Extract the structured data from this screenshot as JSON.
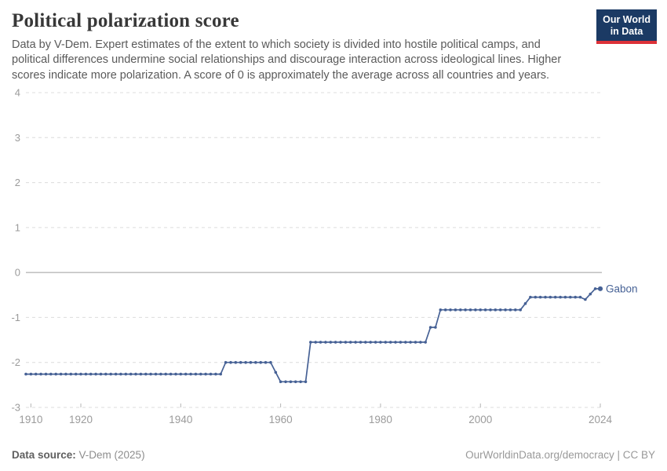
{
  "header": {
    "title": "Political polarization score",
    "subtitle": "Data by V-Dem. Expert estimates of the extent to which society is divided into hostile political camps, and political differences undermine social relationships and discourage interaction across ideological lines. Higher scores indicate more polarization. A score of 0 is approximately the average across all countries and years."
  },
  "logo": {
    "line1": "Our World",
    "line2": "in Data"
  },
  "footer": {
    "source_label": "Data source:",
    "source_value": " V-Dem (2025)",
    "right": "OurWorldinData.org/democracy | CC BY"
  },
  "colors": {
    "accent": "#466195",
    "logo_navy": "#1b3a64",
    "logo_red": "#dc3138",
    "grid": "#dcdcdc",
    "zero_line": "#9e9e9e",
    "axis_text": "#9b9b9b",
    "tick_mark": "#b5b5b5"
  },
  "chart_data": {
    "type": "line",
    "title": "Political polarization score",
    "xlabel": "",
    "ylabel": "",
    "xlim": [
      1909,
      2024
    ],
    "ylim": [
      -3,
      4
    ],
    "xticks": [
      1910,
      1920,
      1940,
      1960,
      1980,
      2000,
      2024
    ],
    "yticks": [
      -3,
      -2,
      -1,
      0,
      1,
      2,
      3,
      4
    ],
    "grid": "horizontal dashed gridlines, solid line at 0",
    "legend_position": "end-of-line label",
    "marker": "circle every year",
    "series": [
      {
        "name": "Gabon",
        "color": "#466195",
        "segments": [
          {
            "from": 1909,
            "to": 1948,
            "value": -2.26
          },
          {
            "from": 1949,
            "to": 1958,
            "value": -2.0
          },
          {
            "from": 1959,
            "to": 1959,
            "value": -2.22
          },
          {
            "from": 1960,
            "to": 1965,
            "value": -2.43
          },
          {
            "from": 1966,
            "to": 1989,
            "value": -1.55
          },
          {
            "from": 1990,
            "to": 1991,
            "value": -1.22
          },
          {
            "from": 1992,
            "to": 2008,
            "value": -0.83
          },
          {
            "from": 2009,
            "to": 2009,
            "value": -0.69
          },
          {
            "from": 2010,
            "to": 2020,
            "value": -0.55
          },
          {
            "from": 2021,
            "to": 2021,
            "value": -0.6
          },
          {
            "from": 2022,
            "to": 2022,
            "value": -0.48
          },
          {
            "from": 2023,
            "to": 2024,
            "value": -0.36
          }
        ]
      }
    ]
  }
}
